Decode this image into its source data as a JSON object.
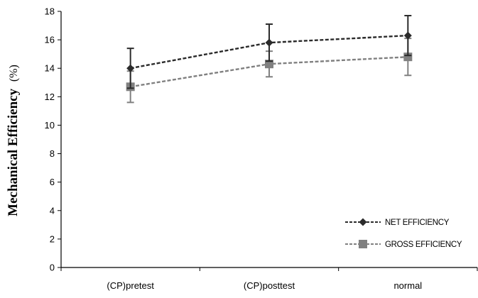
{
  "chart_data": {
    "type": "line",
    "categories": [
      "(CP)pretest",
      "(CP)posttest",
      "normal"
    ],
    "ylabel": "Mechanical Efficiency",
    "ylabel_unit": "(%)",
    "xlabel": "",
    "title": "",
    "ylim": [
      0,
      18
    ],
    "yticks": [
      0,
      2,
      4,
      6,
      8,
      10,
      12,
      14,
      16,
      18
    ],
    "grid": false,
    "legend_position": "bottom-right",
    "series": [
      {
        "name": "NET EFFICIENCY",
        "marker": "diamond",
        "line_style": "dashed",
        "color": "#2b2b2b",
        "values": [
          14.0,
          15.8,
          16.3
        ],
        "error": [
          1.4,
          1.3,
          1.4
        ]
      },
      {
        "name": "GROSS EFFICIENCY",
        "marker": "square",
        "line_style": "dashed",
        "color": "#808080",
        "values": [
          12.7,
          14.3,
          14.8
        ],
        "error": [
          1.1,
          0.9,
          1.3
        ]
      }
    ]
  }
}
